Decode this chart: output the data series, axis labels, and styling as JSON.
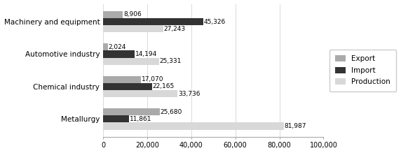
{
  "categories": [
    "Machinery and equipment",
    "Automotive industry",
    "Chemical industry",
    "Metallurgy"
  ],
  "export": [
    8906,
    2024,
    17070,
    25680
  ],
  "import_": [
    45326,
    14194,
    22165,
    11861
  ],
  "production": [
    27243,
    25331,
    33736,
    81987
  ],
  "export_label": "Export",
  "import_label": "Import",
  "production_label": "Production",
  "export_color": "#aaaaaa",
  "import_color": "#333333",
  "production_color": "#d8d8d8",
  "bar_height": 0.22,
  "xlim": [
    0,
    100000
  ],
  "xticks": [
    0,
    20000,
    40000,
    60000,
    80000,
    100000
  ],
  "xtick_labels": [
    "0",
    "20,000",
    "40,000",
    "60,000",
    "80,000",
    "100,000"
  ],
  "legend_fontsize": 7.5,
  "label_fontsize": 6.5,
  "tick_fontsize": 7,
  "category_fontsize": 7.5
}
